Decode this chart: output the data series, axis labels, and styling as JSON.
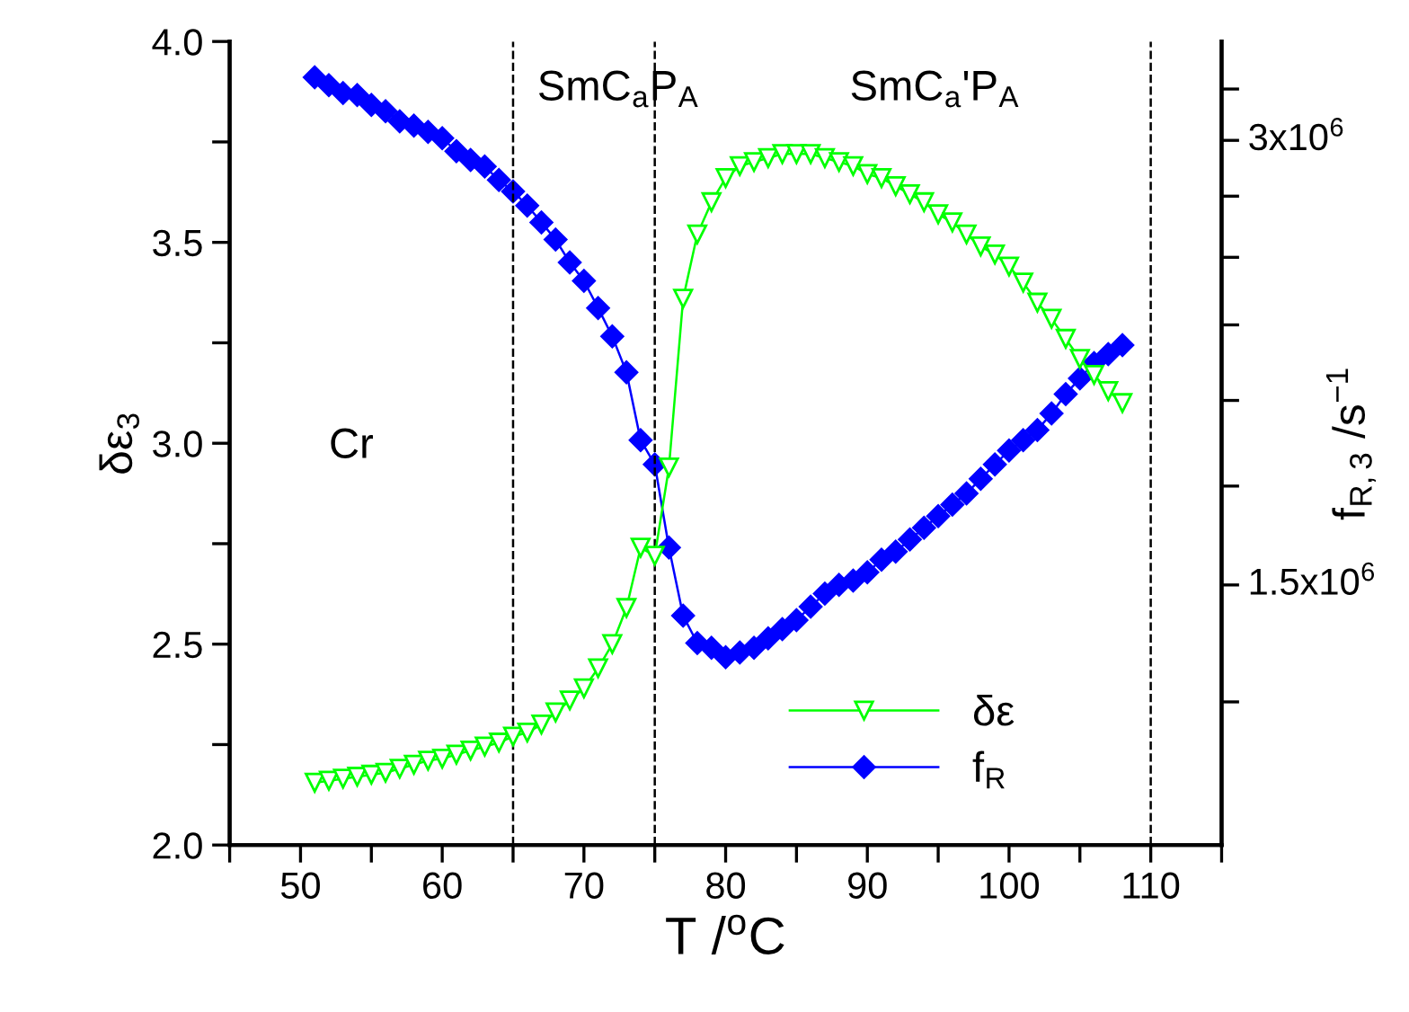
{
  "chart_data": {
    "type": "line",
    "xlabel": "T /$^{o}$C",
    "ylabel": "δε$_{3}$",
    "y2label": "f$_{R,3}$ /s$^{−1}$",
    "series": [
      {
        "name": "δε",
        "color": "#00ff00",
        "marker": "triangle",
        "axis": "y",
        "x": [
          51,
          52,
          53,
          54,
          55,
          56,
          57,
          58,
          59,
          60,
          61,
          62,
          63,
          64,
          65,
          66,
          67,
          68,
          69,
          70,
          71,
          72,
          73,
          74,
          75,
          76,
          77,
          78,
          79,
          80,
          81,
          82,
          83,
          84,
          85,
          86,
          87,
          88,
          89,
          90,
          91,
          92,
          93,
          94,
          95,
          96,
          97,
          98,
          99,
          100,
          101,
          102,
          103,
          104,
          105,
          106,
          107,
          108
        ],
        "values": [
          2.155,
          2.16,
          2.165,
          2.17,
          2.175,
          2.18,
          2.19,
          2.2,
          2.21,
          2.215,
          2.225,
          2.235,
          2.245,
          2.255,
          2.27,
          2.28,
          2.3,
          2.33,
          2.36,
          2.39,
          2.44,
          2.5,
          2.59,
          2.74,
          2.72,
          2.94,
          3.36,
          3.52,
          3.6,
          3.66,
          3.69,
          3.7,
          3.71,
          3.72,
          3.72,
          3.72,
          3.71,
          3.7,
          3.69,
          3.67,
          3.66,
          3.64,
          3.62,
          3.6,
          3.57,
          3.55,
          3.52,
          3.49,
          3.47,
          3.44,
          3.4,
          3.35,
          3.31,
          3.26,
          3.21,
          3.17,
          3.13,
          3.1
        ]
      },
      {
        "name": "f$_{R}$",
        "color": "#0000ff",
        "marker": "diamond",
        "axis": "y2",
        "x": [
          51,
          52,
          53,
          54,
          55,
          56,
          57,
          58,
          59,
          60,
          61,
          62,
          63,
          64,
          65,
          66,
          67,
          68,
          69,
          70,
          71,
          72,
          73,
          74,
          75,
          76,
          77,
          78,
          79,
          80,
          81,
          82,
          83,
          84,
          85,
          86,
          87,
          88,
          89,
          90,
          91,
          92,
          93,
          94,
          95,
          96,
          97,
          98,
          99,
          100,
          101,
          102,
          103,
          104,
          105,
          106,
          107,
          108
        ],
        "values": [
          3310000,
          3270000,
          3230000,
          3220000,
          3170000,
          3140000,
          3090000,
          3070000,
          3040000,
          3010000,
          2950000,
          2910000,
          2880000,
          2820000,
          2770000,
          2710000,
          2640000,
          2570000,
          2480000,
          2410000,
          2310000,
          2210000,
          2090000,
          1880000,
          1810000,
          1590000,
          1430000,
          1370000,
          1360000,
          1340000,
          1350000,
          1360000,
          1380000,
          1400000,
          1420000,
          1450000,
          1480000,
          1500000,
          1510000,
          1530000,
          1560000,
          1580000,
          1610000,
          1640000,
          1670000,
          1700000,
          1730000,
          1770000,
          1810000,
          1850000,
          1880000,
          1910000,
          1960000,
          2020000,
          2070000,
          2120000,
          2150000,
          2180000
        ]
      }
    ],
    "xlim": [
      45,
      115
    ],
    "xticks": [
      {
        "value": 45,
        "label": null
      },
      50,
      {
        "value": 55,
        "label": null
      },
      60,
      {
        "value": 65,
        "label": null
      },
      70,
      {
        "value": 75,
        "label": null
      },
      80,
      {
        "value": 85,
        "label": null
      },
      90,
      {
        "value": 95,
        "label": null
      },
      100,
      {
        "value": 105,
        "label": null
      },
      110,
      {
        "value": 115,
        "label": null
      }
    ],
    "ylim": [
      2.0,
      4.0
    ],
    "yticks": [
      {
        "value": 2.0,
        "label": "2.0"
      },
      {
        "value": 2.25,
        "label": null
      },
      {
        "value": 2.5,
        "label": "2.5"
      },
      {
        "value": 2.75,
        "label": null
      },
      {
        "value": 3.0,
        "label": "3.0"
      },
      {
        "value": 3.25,
        "label": null
      },
      {
        "value": 3.5,
        "label": "3.5"
      },
      {
        "value": 3.75,
        "label": null
      },
      {
        "value": 4.0,
        "label": "4.0"
      }
    ],
    "y2lim": [
      1000000,
      3500000
    ],
    "y2ticks": [
      {
        "value": 1250000,
        "label": null
      },
      {
        "value": 1500000,
        "label": "1.5x10$^{6}$"
      },
      {
        "value": 1750000,
        "label": null
      },
      {
        "value": 2000000,
        "label": null
      },
      {
        "value": 2250000,
        "label": null
      },
      {
        "value": 2500000,
        "label": null
      },
      {
        "value": 2750000,
        "label": null
      },
      {
        "value": 3000000,
        "label": "3x10$^{6}$"
      },
      {
        "value": 3250000,
        "label": null
      }
    ],
    "log": "y2",
    "ref_lines": [
      {
        "axis": "x",
        "value": 65,
        "color": "#000000",
        "line_style": "dashed"
      },
      {
        "axis": "x",
        "value": 75,
        "color": "#000000",
        "line_style": "dashed"
      },
      {
        "axis": "x",
        "value": 110,
        "color": "#000000",
        "line_style": "dashed"
      }
    ],
    "annotations": [
      "Cr",
      "SmC$_{a}$P$_{A}$",
      "SmC$_{a}$'P$_{A}$"
    ],
    "legend": "bottom right",
    "grid": false,
    "line_style": "solid"
  }
}
